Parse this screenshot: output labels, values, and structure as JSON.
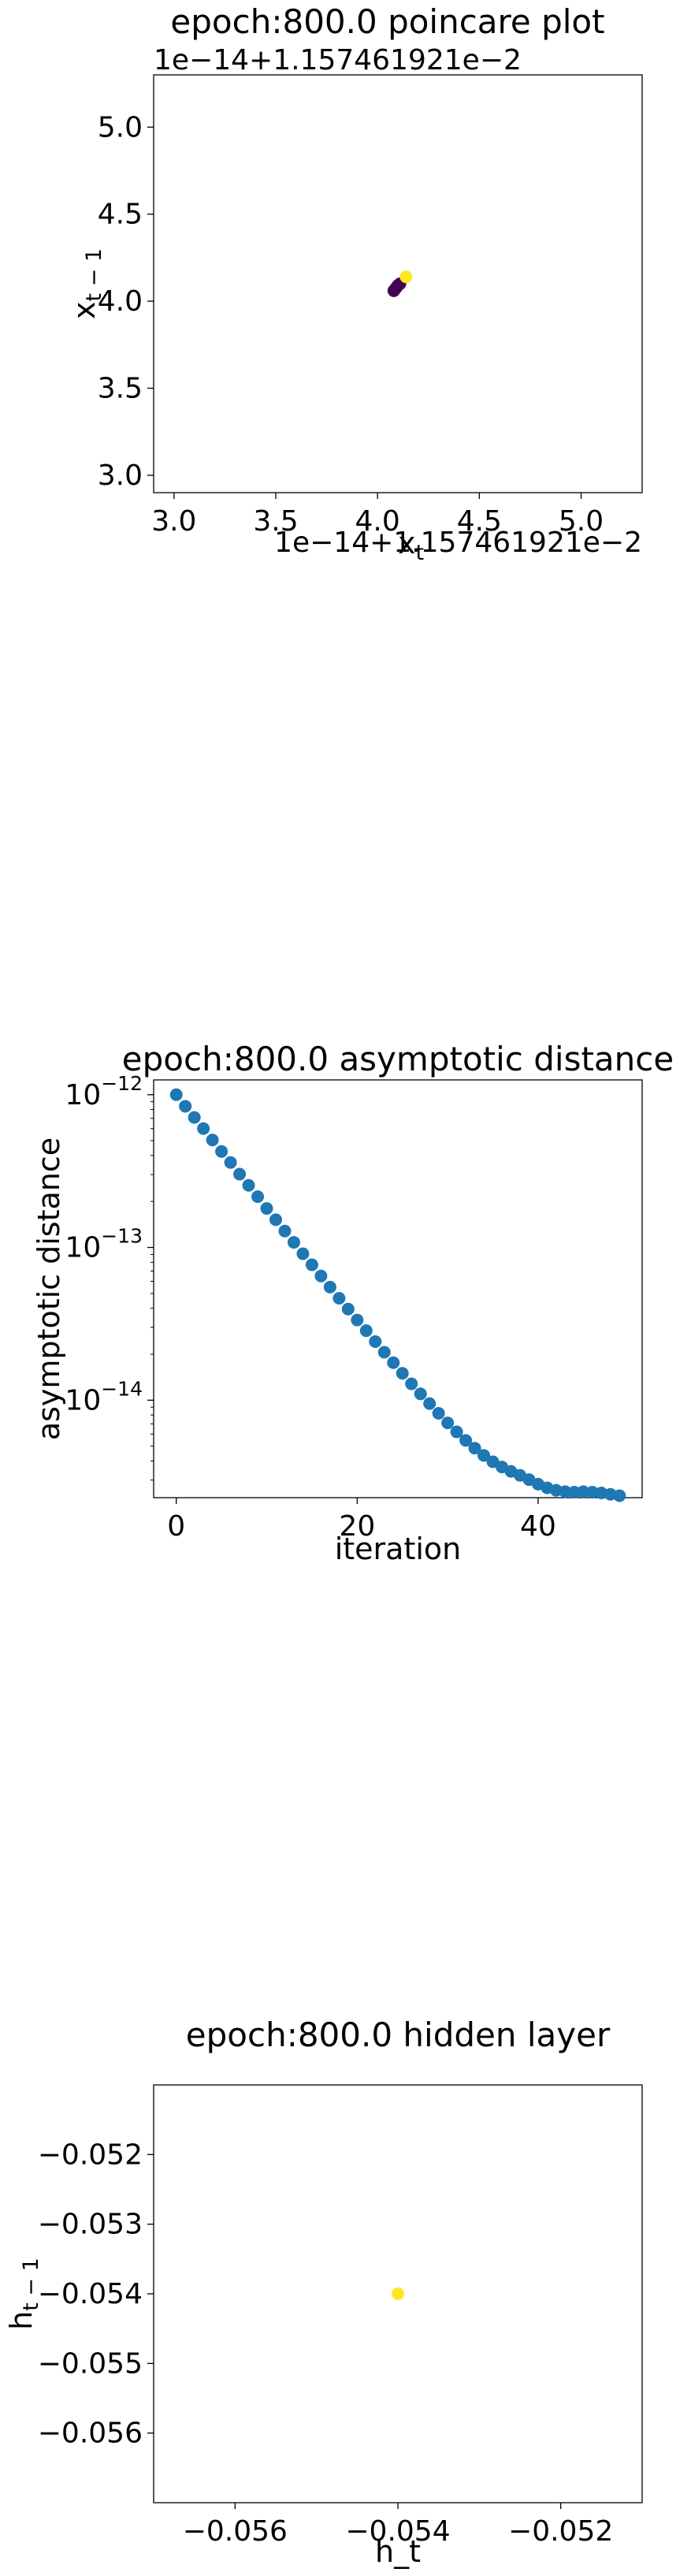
{
  "chart_data": [
    {
      "type": "scatter",
      "title": "epoch:800.0 poincare plot",
      "xlabel": "$x_t$",
      "ylabel": "$x_{t-1}$",
      "x_offset_label": "1e−14+1.157461921e−2",
      "y_offset_label": "1e−14+1.157461921e−2",
      "xlim": [
        2.9,
        5.3
      ],
      "ylim": [
        2.9,
        5.3
      ],
      "xticks": [
        "3.0",
        "3.5",
        "4.0",
        "4.5",
        "5.0"
      ],
      "yticks": [
        "3.0",
        "3.5",
        "4.0",
        "4.5",
        "5.0"
      ],
      "colormap": [
        "#440154",
        "#3b528b",
        "#21918c",
        "#5ec962",
        "#fde725"
      ],
      "points": [
        {
          "x": 4.08,
          "y": 4.06
        },
        {
          "x": 4.09,
          "y": 4.075
        },
        {
          "x": 4.1,
          "y": 4.09
        },
        {
          "x": 4.11,
          "y": 4.1
        },
        {
          "x": 4.14,
          "y": 4.14
        }
      ]
    },
    {
      "type": "scatter",
      "title": "epoch:800.0 asymptotic distance",
      "xlabel": "iteration",
      "ylabel": "asymptotic distance",
      "yscale": "log",
      "xlim": [
        -2.5,
        51.5
      ],
      "ylim": [
        2.3e-15,
        1.25e-12
      ],
      "xticks": [
        "0",
        "20",
        "40"
      ],
      "yticks": [
        {
          "base": "10",
          "exp": "−12"
        },
        {
          "base": "10",
          "exp": "−13"
        },
        {
          "base": "10",
          "exp": "−14"
        }
      ],
      "color": "#1f77b4",
      "x": [
        0,
        1,
        2,
        3,
        4,
        5,
        6,
        7,
        8,
        9,
        10,
        11,
        12,
        13,
        14,
        15,
        16,
        17,
        18,
        19,
        20,
        21,
        22,
        23,
        24,
        25,
        26,
        27,
        28,
        29,
        30,
        31,
        32,
        33,
        34,
        35,
        36,
        37,
        38,
        39,
        40,
        41,
        42,
        43,
        44,
        45,
        46,
        47,
        48,
        49
      ],
      "y": [
        1e-12,
        8.4e-13,
        7.1e-13,
        6e-13,
        5.05e-13,
        4.25e-13,
        3.6e-13,
        3.02e-13,
        2.55e-13,
        2.15e-13,
        1.8e-13,
        1.52e-13,
        1.28e-13,
        1.08e-13,
        9.1e-14,
        7.7e-14,
        6.5e-14,
        5.5e-14,
        4.65e-14,
        3.95e-14,
        3.35e-14,
        2.85e-14,
        2.42e-14,
        2.06e-14,
        1.76e-14,
        1.5e-14,
        1.28e-14,
        1.1e-14,
        9.5e-15,
        8.2e-15,
        7.1e-15,
        6.2e-15,
        5.45e-15,
        4.85e-15,
        4.35e-15,
        3.95e-15,
        3.65e-15,
        3.42e-15,
        3.22e-15,
        3.02e-15,
        2.82e-15,
        2.67e-15,
        2.57e-15,
        2.52e-15,
        2.5e-15,
        2.52e-15,
        2.5e-15,
        2.47e-15,
        2.42e-15,
        2.37e-15
      ]
    },
    {
      "type": "scatter",
      "title": "epoch:800.0 hidden layer",
      "xlabel": "h_t",
      "ylabel": "$h_{t-1}$",
      "xlim": [
        -0.057,
        -0.051
      ],
      "ylim": [
        -0.057,
        -0.051
      ],
      "xticks": [
        "−0.056",
        "−0.054",
        "−0.052"
      ],
      "yticks": [
        "−0.052",
        "−0.053",
        "−0.054",
        "−0.055",
        "−0.056"
      ],
      "color": "#fde725",
      "points": [
        {
          "x": -0.054,
          "y": -0.054
        }
      ]
    }
  ]
}
